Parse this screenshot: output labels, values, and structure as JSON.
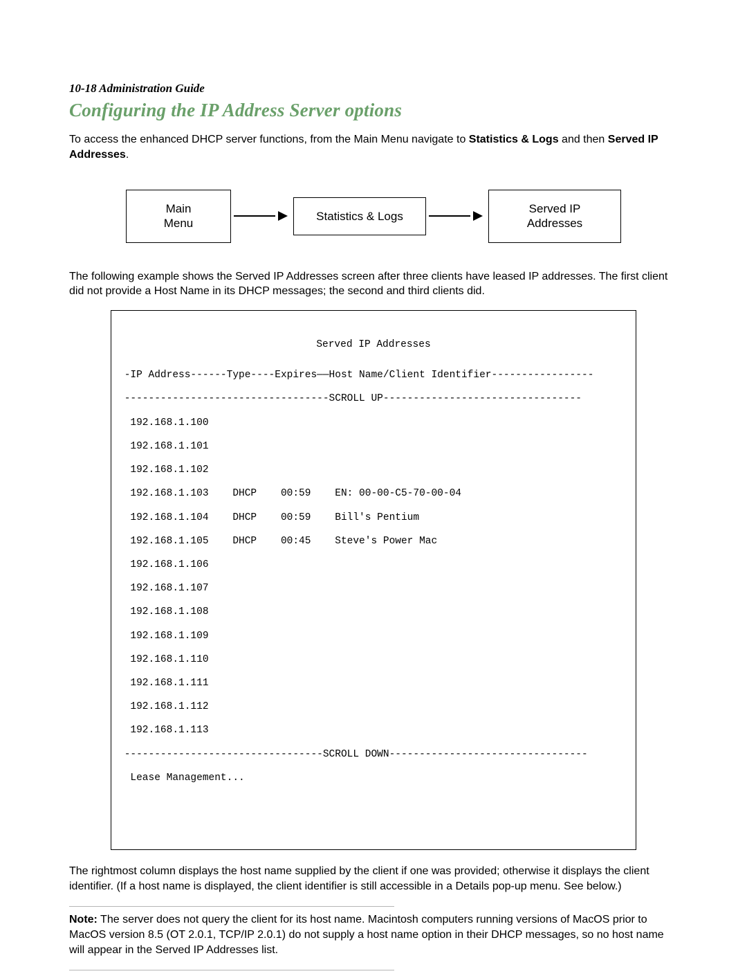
{
  "pageMarker": "10-18  Administration Guide",
  "heading": {
    "text": "Configuring the IP Address Server options",
    "color": "#6aa06a"
  },
  "intro": {
    "pre": "To access the enhanced DHCP server functions, from the Main Menu navigate to ",
    "boldA": "Statistics & Logs",
    "mid": " and then ",
    "boldB": "Served IP Addresses",
    "post": "."
  },
  "flow": {
    "boxA": "Main\nMenu",
    "boxB": "Statistics & Logs",
    "boxC": "Served IP\nAddresses"
  },
  "exampleText": "The following example shows the Served IP Addresses screen after three clients have leased IP addresses. The first client did not provide a Host Name in its DHCP messages; the second and third clients did.",
  "terminal": {
    "title": "Served IP Addresses",
    "header": " -IP Address------Type----Expires——Host Name/Client Identifier----------------- ",
    "scrollUp": " ----------------------------------SCROLL UP--------------------------------- ",
    "rows": [
      "  192.168.1.100",
      "  192.168.1.101",
      "  192.168.1.102",
      "  192.168.1.103    DHCP    00:59    EN: 00-00-C5-70-00-04",
      "  192.168.1.104    DHCP    00:59    Bill's Pentium",
      "  192.168.1.105    DHCP    00:45    Steve's Power Mac",
      "  192.168.1.106",
      "  192.168.1.107",
      "  192.168.1.108",
      "  192.168.1.109",
      "  192.168.1.110",
      "  192.168.1.111",
      "  192.168.1.112",
      "  192.168.1.113"
    ],
    "scrollDown": " ---------------------------------SCROLL DOWN--------------------------------- ",
    "footer": "  Lease Management..."
  },
  "rightmostText": "The rightmost column displays the host name supplied by the client if one was provided; otherwise it displays the client identifier. (If a host name is displayed, the client identifier is still accessible in a Details pop-up menu. See below.)",
  "note": {
    "label": "Note:",
    "body": "  The server does not query the client for its host name. Macintosh computers running versions of MacOS prior to MacOS version 8.5 (OT 2.0.1, TCP/IP 2.0.1) do not supply a host name option in their DHCP messages, so no host name will appear in the Served IP Addresses list."
  }
}
